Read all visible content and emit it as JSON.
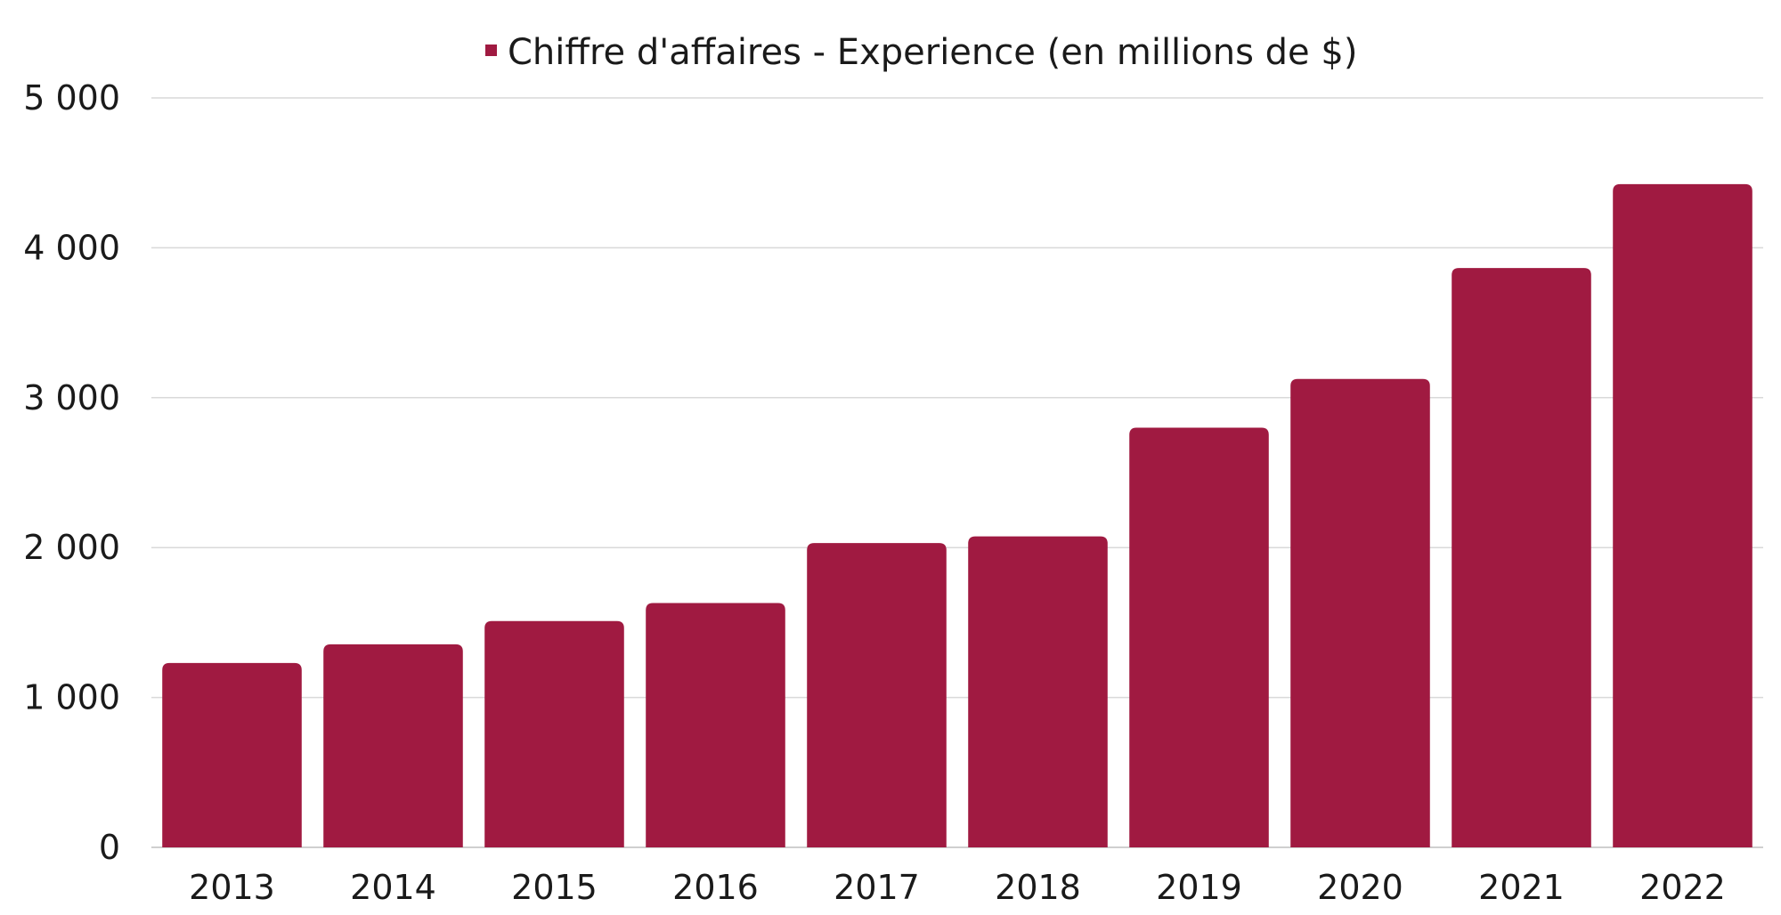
{
  "chart_data": {
    "type": "bar",
    "categories": [
      "2013",
      "2014",
      "2015",
      "2016",
      "2017",
      "2018",
      "2019",
      "2020",
      "2021",
      "2022"
    ],
    "series": [
      {
        "name": "Chiffre d'affaires - Experience (en millions de $)",
        "values": [
          1230,
          1355,
          1510,
          1630,
          2030,
          2075,
          2800,
          3125,
          3865,
          4425
        ],
        "color": "#A01A41"
      }
    ],
    "ylim": [
      0,
      5000
    ],
    "y_ticks": [
      {
        "value": 0,
        "label": "0"
      },
      {
        "value": 1000,
        "label": "1 000"
      },
      {
        "value": 2000,
        "label": "2 000"
      },
      {
        "value": 3000,
        "label": "3 000"
      },
      {
        "value": 4000,
        "label": "4 000"
      },
      {
        "value": 5000,
        "label": "5 000"
      }
    ],
    "grid": true,
    "legend_position": "top-center",
    "title": "",
    "xlabel": "",
    "ylabel": ""
  }
}
